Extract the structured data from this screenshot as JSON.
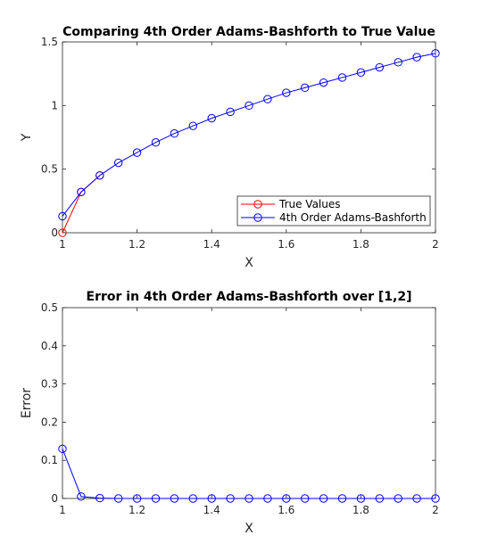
{
  "chart_data": [
    {
      "type": "line",
      "title": "Comparing 4th Order Adams-Bashforth to True Value",
      "xlabel": "X",
      "ylabel": "Y",
      "xlim": [
        1,
        2
      ],
      "ylim": [
        0,
        1.5
      ],
      "xticks": [
        "1",
        "1.2",
        "1.4",
        "1.6",
        "1.8",
        "2"
      ],
      "yticks": [
        "0",
        "0.5",
        "1",
        "1.5"
      ],
      "grid": false,
      "legend_placement": "bottom-right",
      "series": [
        {
          "name": "True Values",
          "color": "#ff0000",
          "marker": "circle",
          "x": [
            1,
            1.05,
            1.1
          ],
          "y": [
            0,
            0.32,
            0.45
          ]
        },
        {
          "name": "4th Order Adams-Bashforth",
          "color": "#0000ff",
          "marker": "circle",
          "x": [
            1,
            1.05,
            1.1,
            1.15,
            1.2,
            1.25,
            1.3,
            1.35,
            1.4,
            1.45,
            1.5,
            1.55,
            1.6,
            1.65,
            1.7,
            1.75,
            1.8,
            1.85,
            1.9,
            1.95,
            2
          ],
          "y": [
            0.13,
            0.32,
            0.45,
            0.55,
            0.63,
            0.71,
            0.78,
            0.84,
            0.9,
            0.95,
            1.0,
            1.05,
            1.1,
            1.14,
            1.18,
            1.22,
            1.26,
            1.3,
            1.34,
            1.38,
            1.41
          ]
        }
      ]
    },
    {
      "type": "line",
      "title": "Error in 4th Order Adams-Bashforth over [1,2]",
      "xlabel": "X",
      "ylabel": "Error",
      "xlim": [
        1,
        2
      ],
      "ylim": [
        0,
        0.5
      ],
      "xticks": [
        "1",
        "1.2",
        "1.4",
        "1.6",
        "1.8",
        "2"
      ],
      "yticks": [
        "0",
        "0.1",
        "0.2",
        "0.3",
        "0.4",
        "0.5"
      ],
      "grid": false,
      "series": [
        {
          "color": "#0000ff",
          "marker": "circle",
          "x": [
            1,
            1.05,
            1.1,
            1.15,
            1.2,
            1.25,
            1.3,
            1.35,
            1.4,
            1.45,
            1.5,
            1.55,
            1.6,
            1.65,
            1.7,
            1.75,
            1.8,
            1.85,
            1.9,
            1.95,
            2
          ],
          "y": [
            0.13,
            0.005,
            0.001,
            0,
            0,
            0,
            0,
            0,
            0,
            0,
            0,
            0,
            0,
            0,
            0,
            0,
            0,
            0,
            0,
            0,
            0
          ]
        }
      ]
    }
  ]
}
